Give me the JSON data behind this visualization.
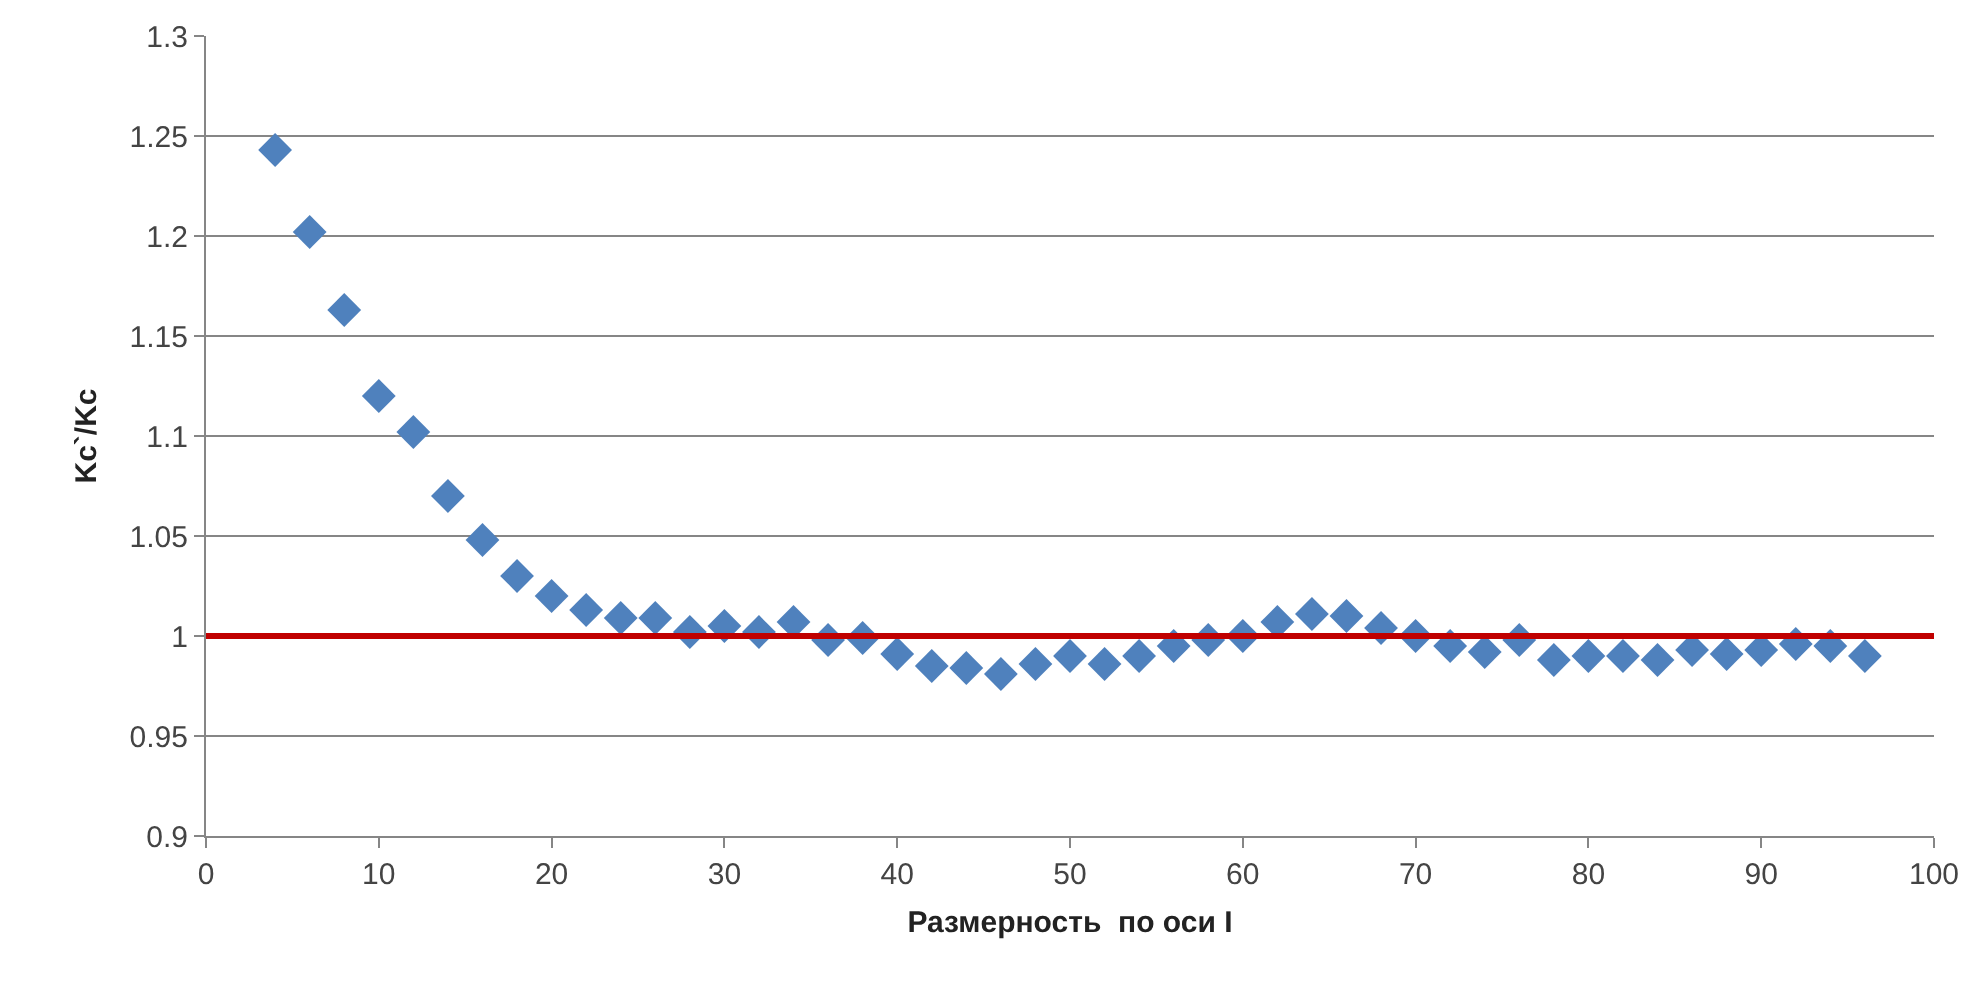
{
  "chart_data": {
    "type": "scatter",
    "xlabel": "Размерность  по оси I",
    "ylabel": "Kc`/Kc",
    "x": [
      4,
      6,
      8,
      10,
      12,
      14,
      16,
      18,
      20,
      22,
      24,
      26,
      28,
      30,
      32,
      34,
      36,
      38,
      40,
      42,
      44,
      46,
      48,
      50,
      52,
      54,
      56,
      58,
      60,
      62,
      64,
      66,
      68,
      70,
      72,
      74,
      76,
      78,
      80,
      82,
      84,
      86,
      88,
      90,
      92,
      94,
      96
    ],
    "series": [
      {
        "color": "#4f81bd",
        "values": [
          1.243,
          1.202,
          1.163,
          1.12,
          1.102,
          1.07,
          1.048,
          1.03,
          1.02,
          1.013,
          1.009,
          1.009,
          1.002,
          1.005,
          1.002,
          1.007,
          0.998,
          0.999,
          0.991,
          0.985,
          0.984,
          0.981,
          0.986,
          0.99,
          0.986,
          0.99,
          0.995,
          0.998,
          1.0,
          1.007,
          1.011,
          1.01,
          1.004,
          1.0,
          0.995,
          0.992,
          0.998,
          0.988,
          0.99,
          0.99,
          0.988,
          0.993,
          0.991,
          0.993,
          0.996,
          0.995,
          0.99
        ]
      }
    ],
    "xlim": [
      0,
      100
    ],
    "xticks": [
      0,
      10,
      20,
      30,
      40,
      50,
      60,
      70,
      80,
      90,
      100
    ],
    "ylim": [
      0.9,
      1.3
    ],
    "yticks": [
      0.9,
      0.95,
      1,
      1.05,
      1.1,
      1.15,
      1.2,
      1.25,
      1.3
    ],
    "grid": "y",
    "marker": "diamond",
    "legend": false,
    "ref_lines": [
      {
        "axis": "y",
        "value": 1,
        "color": "#c00000"
      }
    ]
  }
}
